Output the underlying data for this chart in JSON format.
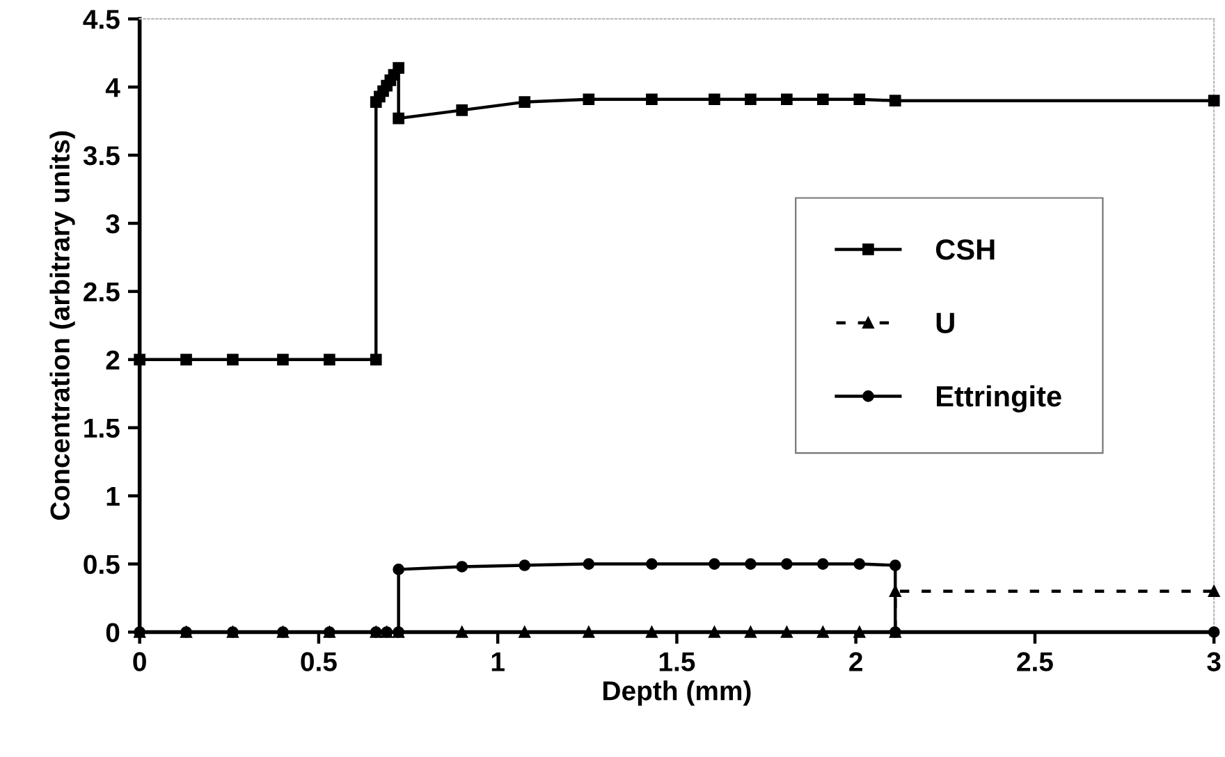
{
  "chart_data": {
    "type": "line",
    "xlabel": "Depth (mm)",
    "ylabel": "Concentration (arbitrary units)",
    "xlim": [
      0,
      3
    ],
    "xticks": [
      0,
      0.5,
      1,
      1.5,
      2,
      2.5,
      3
    ],
    "ylim": [
      0,
      4.5
    ],
    "yticks": [
      0,
      0.5,
      1,
      1.5,
      2,
      2.5,
      3,
      3.5,
      4,
      4.5
    ],
    "grid": false,
    "legend": "right",
    "series": [
      {
        "name": "CSH",
        "color": "#000000",
        "marker": "square",
        "line_style": "solid",
        "x": [
          0,
          0.13,
          0.26,
          0.4,
          0.53,
          0.66,
          0.66,
          0.67,
          0.68,
          0.69,
          0.7,
          0.71,
          0.723,
          0.723,
          0.9,
          1.075,
          1.254,
          1.43,
          1.605,
          1.706,
          1.807,
          1.908,
          2.01,
          2.11,
          3
        ],
        "values": [
          2,
          2,
          2,
          2,
          2,
          2,
          3.89,
          3.93,
          3.97,
          4.01,
          4.05,
          4.09,
          4.14,
          3.77,
          3.83,
          3.89,
          3.91,
          3.91,
          3.91,
          3.91,
          3.91,
          3.91,
          3.91,
          3.9,
          3.9
        ]
      },
      {
        "name": "U",
        "color": "#000000",
        "marker": "triangle",
        "line_style": "dashed",
        "x": [
          0,
          0.13,
          0.26,
          0.4,
          0.53,
          0.66,
          0.69,
          0.723,
          0.9,
          1.075,
          1.254,
          1.43,
          1.605,
          1.706,
          1.807,
          1.908,
          2.01,
          2.11,
          2.11,
          3
        ],
        "values": [
          0,
          0,
          0,
          0,
          0,
          0,
          0,
          0,
          0,
          0,
          0,
          0,
          0,
          0,
          0,
          0,
          0,
          0,
          0.3,
          0.3
        ]
      },
      {
        "name": "Ettringite",
        "color": "#000000",
        "marker": "circle",
        "line_style": "solid",
        "x": [
          0,
          0.13,
          0.26,
          0.4,
          0.53,
          0.66,
          0.69,
          0.723,
          0.723,
          0.9,
          1.075,
          1.254,
          1.43,
          1.605,
          1.706,
          1.807,
          1.908,
          2.01,
          2.11,
          2.11,
          3
        ],
        "values": [
          0,
          0,
          0,
          0,
          0,
          0,
          0,
          0,
          0.46,
          0.48,
          0.49,
          0.5,
          0.5,
          0.5,
          0.5,
          0.5,
          0.5,
          0.5,
          0.49,
          0,
          0
        ]
      }
    ]
  }
}
